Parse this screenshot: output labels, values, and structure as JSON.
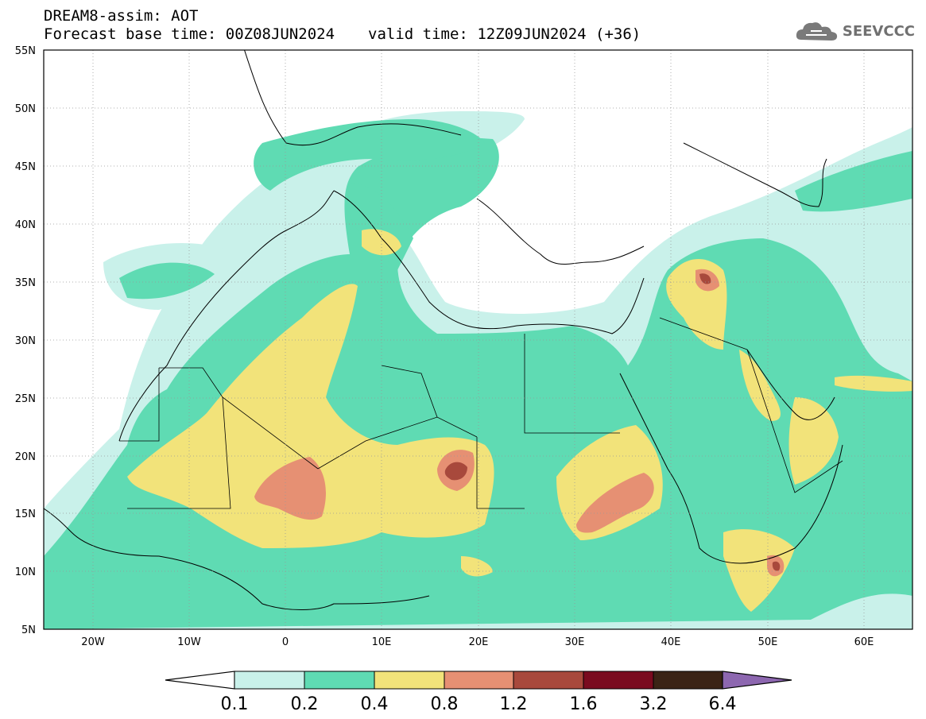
{
  "header": {
    "line1": "DREAM8-assim: AOT",
    "base_time": "Forecast base time: 00Z08JUN2024",
    "valid_time": "valid time: 12Z09JUN2024 (+36)"
  },
  "logo": {
    "text": "SEEVCCC",
    "icon": "cloud-logo-icon",
    "color": "#707070"
  },
  "map": {
    "lat_range": [
      5,
      55
    ],
    "lon_range": [
      -25,
      65
    ],
    "lat_labels": [
      "55N",
      "50N",
      "45N",
      "40N",
      "35N",
      "30N",
      "25N",
      "20N",
      "15N",
      "10N",
      "5N"
    ],
    "lon_labels": [
      "20W",
      "10W",
      "0",
      "10E",
      "20E",
      "30E",
      "40E",
      "50E",
      "60E"
    ],
    "grid": true,
    "grid_style": "dotted"
  },
  "colorbar": {
    "labels": [
      "0.1",
      "0.2",
      "0.4",
      "0.8",
      "1.2",
      "1.6",
      "3.2",
      "6.4"
    ],
    "colors": [
      "#c9f1ea",
      "#5fdbb3",
      "#f2e37a",
      "#e69073",
      "#a8493c",
      "#7a0b1f",
      "#3b2416",
      "#8d67b0"
    ],
    "under_color": "#ffffff"
  },
  "colors": {
    "level1": "#c9f1ea",
    "level2": "#5fdbb3",
    "level3": "#f2e37a",
    "level4": "#e69073",
    "level5": "#a8493c"
  }
}
